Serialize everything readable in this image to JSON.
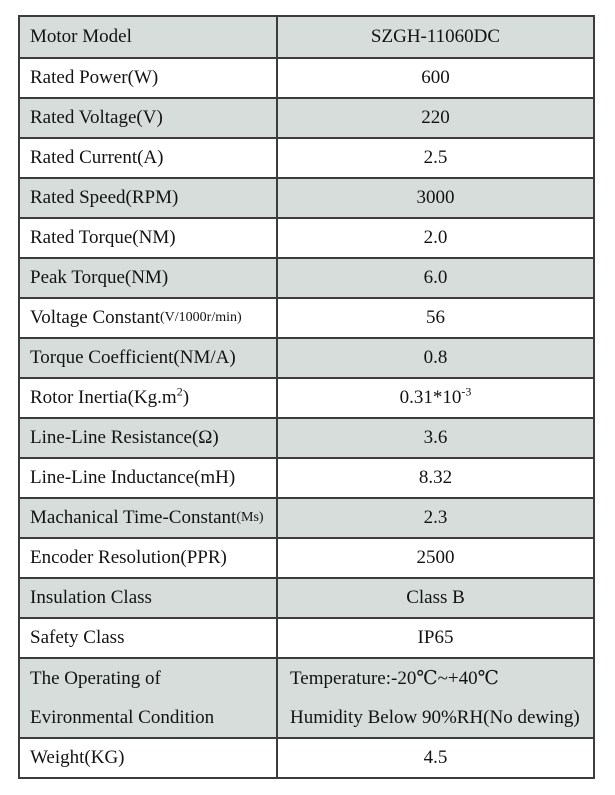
{
  "colors": {
    "row_shaded": "#d6ddda",
    "row_plain": "#ffffff",
    "border": "#3c3c3c",
    "text": "#131313"
  },
  "table": {
    "rows": [
      {
        "label": "Motor Model",
        "value": "SZGH-11060DC"
      },
      {
        "label": "Rated Power(W)",
        "value": "600"
      },
      {
        "label": "Rated Voltage(V)",
        "value": "220"
      },
      {
        "label": "Rated Current(A)",
        "value": "2.5"
      },
      {
        "label": "Rated Speed(RPM)",
        "value": "3000"
      },
      {
        "label": "Rated Torque(NM)",
        "value": "2.0"
      },
      {
        "label": "Peak Torque(NM)",
        "value": "6.0"
      },
      {
        "label": "Voltage Constant",
        "label_small": "(V/1000r/min)",
        "value": "56"
      },
      {
        "label": "Torque Coefficient(NM/A)",
        "value": "0.8"
      },
      {
        "label_pre": "Rotor Inertia(Kg.m",
        "label_sup": "2",
        "label_post": ")",
        "value_pre": "0.31*10",
        "value_sup": "-3"
      },
      {
        "label": "Line-Line Resistance(Ω)",
        "value": "3.6"
      },
      {
        "label": "Line-Line Inductance(mH)",
        "value": "8.32"
      },
      {
        "label": "Machanical Time-Constant",
        "label_small": "(Ms)",
        "value": "2.3"
      },
      {
        "label": "Encoder Resolution(PPR)",
        "value": "2500"
      },
      {
        "label": "Insulation Class",
        "value": "Class B"
      },
      {
        "label": "Safety Class",
        "value": "IP65"
      },
      {
        "label_line1": "The Operating of",
        "label_line2": "Evironmental Condition",
        "value_line1": "Temperature:-20℃~+40℃",
        "value_line2": "Humidity Below 90%RH(No dewing)"
      },
      {
        "label": "Weight(KG)",
        "value": "4.5"
      }
    ]
  }
}
